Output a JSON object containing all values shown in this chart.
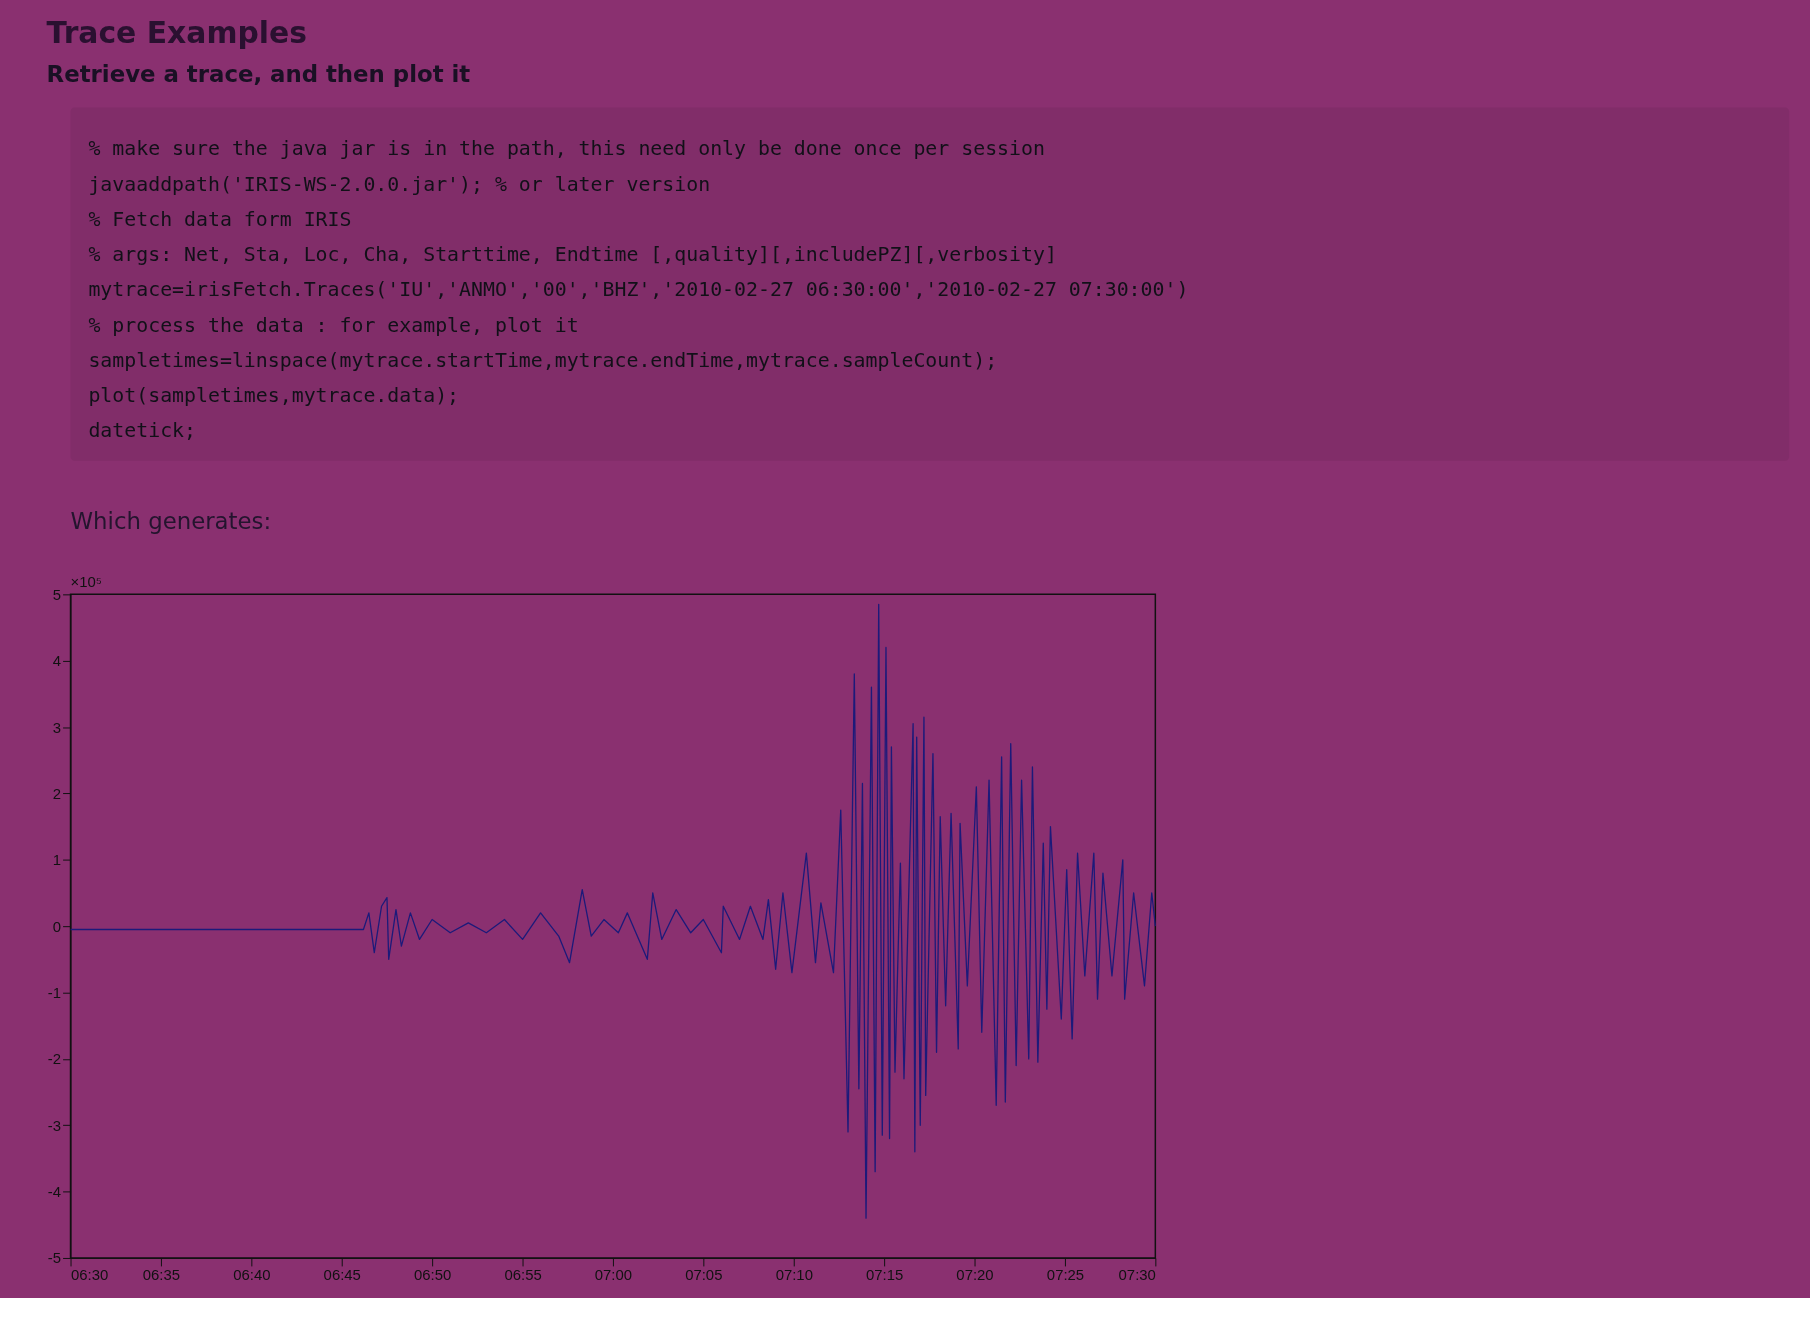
{
  "chart_data": {
    "type": "line",
    "title": "Trace Examples",
    "subtitle": "Retrieve a trace, and then plot it",
    "annotations": [
      "% make sure the java jar is in the path, this need only be done once per session",
      "javaaddpath('IRIS-WS-2.0.0.jar'); % or later version",
      "% Fetch data form IRIS",
      "%   args: Net, Sta, Loc, Cha, Starttime, Endtime [,quality][,includePZ][,verbosity]",
      "mytrace=irisFetch.Traces('IU','ANMO','00','BHZ','2010-02-27 06:30:00','2010-02-27 07:30:00')",
      "% process the data : for example, plot it",
      "sampletimes=linspace(mytrace.startTime,mytrace.endTime,mytrace.sampleCount);",
      "plot(sampletimes,mytrace.data);",
      "datetick;",
      "Which generates:",
      "×10⁵"
    ],
    "x": [
      6.5,
      6.77,
      6.775,
      6.78,
      6.7867,
      6.7917,
      6.7933,
      6.8,
      6.805,
      6.8133,
      6.8217,
      6.8333,
      6.85,
      6.8667,
      6.8833,
      6.9,
      6.9167,
      6.9333,
      6.95,
      6.96,
      6.9717,
      6.98,
      6.9917,
      7.005,
      7.0133,
      7.0317,
      7.0367,
      7.045,
      7.0583,
      7.0717,
      7.0833,
      7.1,
      7.1017,
      7.1167,
      7.1267,
      7.1383,
      7.1433,
      7.15,
      7.1567,
      7.165,
      7.1783,
      7.1867,
      7.1917,
      7.2033,
      7.21,
      7.2167,
      7.2225,
      7.2267,
      7.23,
      7.2333,
      7.2383,
      7.2417,
      7.245,
      7.2483,
      7.2517,
      7.255,
      7.2567,
      7.26,
      7.265,
      7.2683,
      7.2767,
      7.2783,
      7.28,
      7.2833,
      7.2867,
      7.2883,
      7.295,
      7.2983,
      7.3017,
      7.3067,
      7.3117,
      7.3183,
      7.32,
      7.3267,
      7.335,
      7.34,
      7.3467,
      7.3533,
      7.3583,
      7.3617,
      7.3667,
      7.3717,
      7.3767,
      7.3833,
      7.3867,
      7.3917,
      7.3967,
      7.4,
      7.4033,
      7.4133,
      7.4183,
      7.4233,
      7.4283,
      7.435,
      7.4433,
      7.4467,
      7.4517,
      7.46,
      7.47,
      7.4717,
      7.48,
      7.49,
      7.4967,
      7.5
    ],
    "series": [
      {
        "color": "#1c1a7a",
        "values": [
          -0.05,
          -0.05,
          0.2,
          -0.4,
          0.3,
          0.43,
          -0.5,
          0.25,
          -0.3,
          0.2,
          -0.2,
          0.1,
          -0.1,
          0.05,
          -0.1,
          0.1,
          -0.2,
          0.2,
          -0.15,
          -0.55,
          0.55,
          -0.15,
          0.1,
          -0.1,
          0.2,
          -0.5,
          0.5,
          -0.2,
          0.25,
          -0.1,
          0.1,
          -0.4,
          0.3,
          -0.2,
          0.3,
          -0.2,
          0.4,
          -0.65,
          0.5,
          -0.7,
          1.1,
          -0.55,
          0.35,
          -0.7,
          1.75,
          -3.1,
          3.8,
          -2.45,
          2.15,
          -4.4,
          3.6,
          -3.7,
          4.85,
          -3.15,
          4.2,
          -3.2,
          2.7,
          -2.2,
          0.95,
          -2.3,
          3.05,
          -3.4,
          2.85,
          -3.0,
          3.15,
          -2.55,
          2.6,
          -1.9,
          1.65,
          -1.2,
          1.7,
          -1.85,
          1.55,
          -0.9,
          2.1,
          -1.6,
          2.2,
          -2.7,
          2.55,
          -2.65,
          2.75,
          -2.1,
          2.2,
          -2.0,
          2.4,
          -2.05,
          1.25,
          -1.25,
          1.5,
          -1.4,
          0.85,
          -1.7,
          1.1,
          -0.75,
          1.1,
          -1.1,
          0.8,
          -0.75,
          1.0,
          -1.1,
          0.5,
          -0.9,
          0.5,
          0
        ]
      }
    ],
    "xlim": [
      6.5,
      7.5
    ],
    "xticks": [
      {
        "value": 6.5,
        "label": "06:30"
      },
      {
        "value": 6.5833,
        "label": "06:35"
      },
      {
        "value": 6.6667,
        "label": "06:40"
      },
      {
        "value": 6.75,
        "label": "06:45"
      },
      {
        "value": 6.8333,
        "label": "06:50"
      },
      {
        "value": 6.9167,
        "label": "06:55"
      },
      {
        "value": 7.0,
        "label": "07:00"
      },
      {
        "value": 7.0833,
        "label": "07:05"
      },
      {
        "value": 7.1667,
        "label": "07:10"
      },
      {
        "value": 7.25,
        "label": "07:15"
      },
      {
        "value": 7.3333,
        "label": "07:20"
      },
      {
        "value": 7.4167,
        "label": "07:25"
      },
      {
        "value": 7.5,
        "label": "07:30"
      }
    ],
    "ylim": [
      -5,
      5
    ],
    "yticks": [
      -5,
      -4,
      -3,
      -2,
      -1,
      0,
      1,
      2,
      3,
      4,
      5
    ],
    "grid": false,
    "line_style": "solid",
    "marker": "none"
  }
}
